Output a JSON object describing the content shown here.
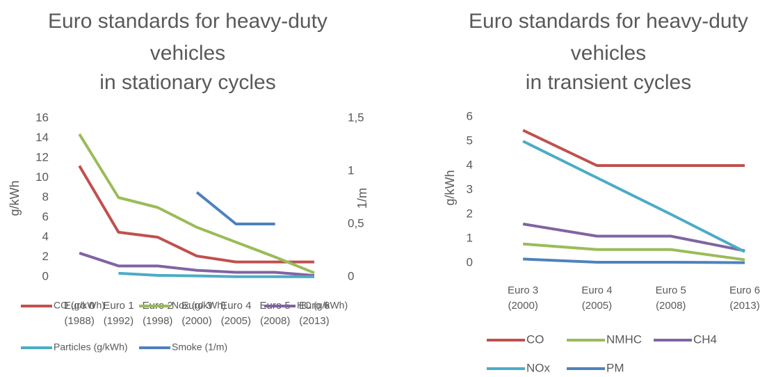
{
  "chart_data": [
    {
      "type": "line",
      "title": [
        "Euro standards for heavy-duty",
        "vehicles",
        "in stationary cycles"
      ],
      "y_label": "g/kWh",
      "y2_label": "1/m",
      "categories": [
        "Euro 0 (1988)",
        "Euro 1 (1992)",
        "Euro 2 (1998)",
        "Euro 3 (2000)",
        "Euro 4 (2005)",
        "Euro 5 (2008)",
        "Euro 6 (2013)"
      ],
      "series": [
        {
          "name": "CO (g/kWh)",
          "color": "#c0504d",
          "values": [
            11.2,
            4.5,
            4.0,
            2.1,
            1.5,
            1.5,
            1.5
          ]
        },
        {
          "name": "Nox (g/kWh)",
          "color": "#9bbb59",
          "values": [
            14.4,
            8,
            7,
            5,
            3.5,
            2,
            0.4
          ]
        },
        {
          "name": "HC (g/kWh)",
          "color": "#8064a2",
          "values": [
            2.4,
            1.1,
            1.1,
            0.66,
            0.46,
            0.46,
            0.13
          ]
        },
        {
          "name": "Particles (g/kWh)",
          "color": "#4bacc6",
          "values": [
            null,
            0.36,
            0.15,
            0.1,
            0.02,
            0.02,
            0.01
          ]
        },
        {
          "name": "Smoke (1/m)",
          "color": "#4f81bd",
          "axis": "y2",
          "values": [
            null,
            null,
            null,
            0.8,
            0.5,
            0.5,
            null
          ]
        }
      ],
      "ylim": [
        0,
        16
      ],
      "yticks": [
        0,
        2,
        4,
        6,
        8,
        10,
        12,
        14,
        16
      ],
      "y2lim": [
        0,
        1.5
      ],
      "y2ticks": [
        0,
        {
          "value": 0.5,
          "label": "0,5"
        },
        1,
        {
          "value": 1.5,
          "label": "1,5"
        }
      ],
      "legend": "bottom"
    },
    {
      "type": "line",
      "title": [
        "Euro standards for heavy-duty",
        "vehicles",
        "in transient cycles"
      ],
      "y_label": "g/kWh",
      "categories": [
        "Euro 3 (2000)",
        "Euro 4 (2005)",
        "Euro 5 (2008)",
        "Euro 6 (2013)"
      ],
      "series": [
        {
          "name": "CO",
          "color": "#c0504d",
          "values": [
            5.45,
            4,
            4,
            4
          ]
        },
        {
          "name": "NMHC",
          "color": "#9bbb59",
          "values": [
            0.78,
            0.55,
            0.55,
            0.13
          ]
        },
        {
          "name": "CH4",
          "color": "#8064a2",
          "values": [
            1.6,
            1.1,
            1.1,
            0.5
          ]
        },
        {
          "name": "NOx",
          "color": "#4bacc6",
          "values": [
            5,
            3.5,
            2,
            0.46
          ]
        },
        {
          "name": "PM",
          "color": "#4f81bd",
          "values": [
            0.16,
            0.03,
            0.03,
            0.01
          ]
        }
      ],
      "ylim": [
        0,
        6
      ],
      "yticks": [
        0,
        1,
        2,
        3,
        4,
        5,
        6
      ],
      "legend": "bottom"
    }
  ]
}
